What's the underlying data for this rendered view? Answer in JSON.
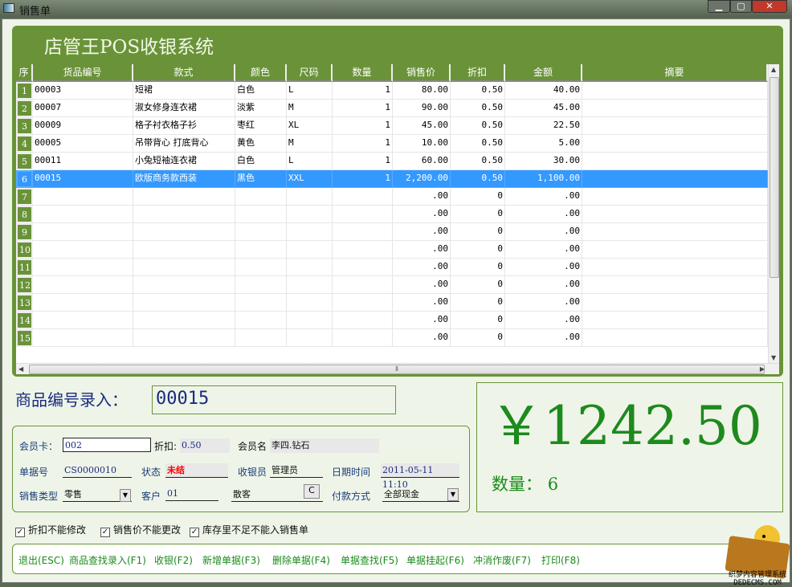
{
  "window": {
    "title": "销售单",
    "controls": {
      "minimize": "minimize-icon",
      "maximize": "maximize-icon",
      "close": "close-icon"
    }
  },
  "app_title": "店管王POS收银系统",
  "grid": {
    "columns": [
      "序",
      "货品编号",
      "款式",
      "颜色",
      "尺码",
      "数量",
      "销售价",
      "折扣",
      "金额",
      "摘要"
    ],
    "rows": [
      [
        "1",
        "00003",
        "短裙",
        "白色",
        "L",
        "1",
        "80.00",
        "0.50",
        "40.00",
        ""
      ],
      [
        "2",
        "00007",
        "淑女修身连衣裙",
        "淡紫",
        "M",
        "1",
        "90.00",
        "0.50",
        "45.00",
        ""
      ],
      [
        "3",
        "00009",
        "格子衬衣格子衫",
        "枣红",
        "XL",
        "1",
        "45.00",
        "0.50",
        "22.50",
        ""
      ],
      [
        "4",
        "00005",
        "吊带背心 打底背心",
        "黄色",
        "M",
        "1",
        "10.00",
        "0.50",
        "5.00",
        ""
      ],
      [
        "5",
        "00011",
        "小兔短袖连衣裙",
        "白色",
        "L",
        "1",
        "60.00",
        "0.50",
        "30.00",
        ""
      ],
      [
        "6",
        "00015",
        "欧版商务款西装",
        "黑色",
        "XXL",
        "1",
        "2,200.00",
        "0.50",
        "1,100.00",
        ""
      ],
      [
        "7",
        "",
        "",
        "",
        "",
        "",
        ".00",
        "0",
        ".00",
        ""
      ],
      [
        "8",
        "",
        "",
        "",
        "",
        "",
        ".00",
        "0",
        ".00",
        ""
      ],
      [
        "9",
        "",
        "",
        "",
        "",
        "",
        ".00",
        "0",
        ".00",
        ""
      ],
      [
        "10",
        "",
        "",
        "",
        "",
        "",
        ".00",
        "0",
        ".00",
        ""
      ],
      [
        "11",
        "",
        "",
        "",
        "",
        "",
        ".00",
        "0",
        ".00",
        ""
      ],
      [
        "12",
        "",
        "",
        "",
        "",
        "",
        ".00",
        "0",
        ".00",
        ""
      ],
      [
        "13",
        "",
        "",
        "",
        "",
        "",
        ".00",
        "0",
        ".00",
        ""
      ],
      [
        "14",
        "",
        "",
        "",
        "",
        "",
        ".00",
        "0",
        ".00",
        ""
      ],
      [
        "15",
        "",
        "",
        "",
        "",
        "",
        ".00",
        "0",
        ".00",
        ""
      ]
    ],
    "selected_row": 6
  },
  "entry": {
    "label": "商品编号录入：",
    "value": "00015"
  },
  "total": {
    "amount": "￥1242.50",
    "qty_label": "数量：",
    "qty": "6"
  },
  "member": {
    "card_label": "会员卡：",
    "card": "002",
    "discount_label": "折扣:",
    "discount": "0.50",
    "name_label": "会员名",
    "name": "李四.钻石",
    "doc_label": "单据号",
    "doc": "CS0000010",
    "status_label": "状态",
    "status": "未结",
    "cashier_label": "收银员",
    "cashier": "管理员",
    "datetime_label": "日期时间",
    "datetime": "2011-05-11 11:10",
    "saletype_label": "销售类型",
    "saletype": "零售",
    "customer_label": "客户",
    "customer_code": "01",
    "customer_name": "散客",
    "customer_btn": "C",
    "pay_label": "付款方式",
    "pay": "全部现金"
  },
  "options": [
    "折扣不能修改",
    "销售价不能更改",
    "库存里不足不能入销售单"
  ],
  "actions": [
    "退出(ESC)",
    "商品查找录入(F1)",
    "收银(F2)",
    "新增单据(F3)",
    "删除单据(F4)",
    "单据查找(F5)",
    "单据挂起(F6)",
    "冲消作废(F7)",
    "打印(F8)"
  ],
  "watermark": {
    "line1": "织梦内容管理系统",
    "line2": "DEDECMS.COM"
  },
  "colors": {
    "brand_green": "#6a9339",
    "selected": "#3399ff",
    "amount": "#1d8a1d",
    "status": "#ff0000"
  }
}
